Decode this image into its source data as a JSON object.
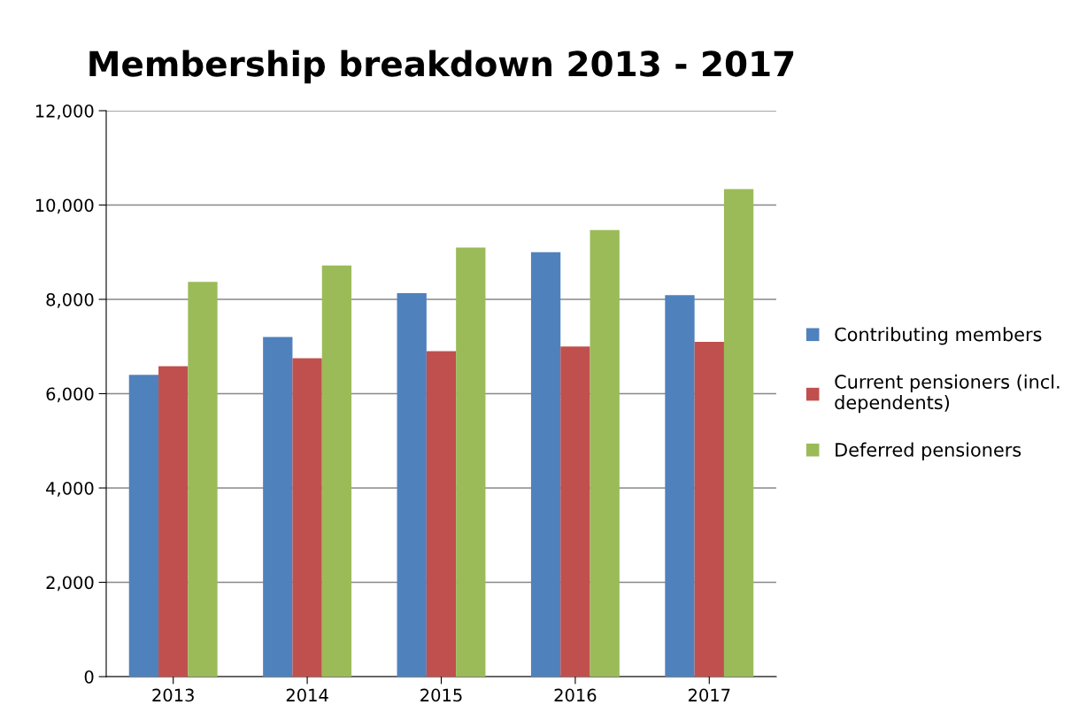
{
  "chart_data": {
    "type": "bar",
    "title": "Membership breakdown 2013 - 2017",
    "categories": [
      "2013",
      "2014",
      "2015",
      "2016",
      "2017"
    ],
    "series": [
      {
        "name": "Contributing members",
        "color": "#4f81bd",
        "values": [
          6400,
          7200,
          8130,
          9000,
          8090
        ]
      },
      {
        "name": "Current pensioners (incl.\ndependents)",
        "color": "#c0504d",
        "values": [
          6580,
          6750,
          6900,
          7000,
          7100
        ]
      },
      {
        "name": "Deferred pensioners",
        "color": "#9bbb59",
        "values": [
          8370,
          8720,
          9100,
          9470,
          10340
        ]
      }
    ],
    "ylim": [
      0,
      12000
    ],
    "yticks": [
      {
        "value": 0,
        "label": "0"
      },
      {
        "value": 2000,
        "label": "2,000"
      },
      {
        "value": 4000,
        "label": "4,000"
      },
      {
        "value": 6000,
        "label": "6,000"
      },
      {
        "value": 8000,
        "label": "8,000"
      },
      {
        "value": 10000,
        "label": "10,000"
      },
      {
        "value": 12000,
        "label": "12,000"
      }
    ],
    "grid": "y",
    "legend": "right"
  }
}
